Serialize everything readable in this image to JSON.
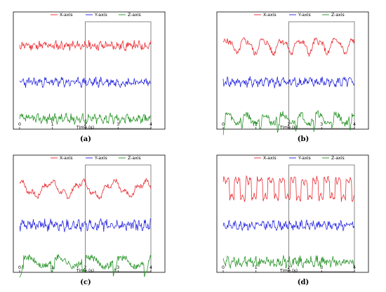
{
  "chart_data": [
    {
      "type": "line",
      "caption": "(a)",
      "xlabel": "Time (s)",
      "xlim": [
        0,
        4
      ],
      "x_ticks": [
        "0",
        "1",
        "2",
        "3",
        "4"
      ],
      "highlight_window": [
        2,
        4
      ],
      "legend_position": "top",
      "series": [
        {
          "name": "X-axis",
          "color": "#e8242a",
          "offset": 2.0,
          "amplitude": 0.17,
          "pattern": "noise",
          "seed": 11
        },
        {
          "name": "Y-axis",
          "color": "#2020e0",
          "offset": 1.0,
          "amplitude": 0.17,
          "pattern": "noise",
          "seed": 23
        },
        {
          "name": "Z-axis",
          "color": "#1f8f1f",
          "offset": 0.0,
          "amplitude": 0.18,
          "pattern": "noise",
          "seed": 37
        }
      ]
    },
    {
      "type": "line",
      "caption": "(b)",
      "xlabel": "Time (s)",
      "xlim": [
        0,
        4
      ],
      "x_ticks": [
        "0",
        "1",
        "2",
        "3",
        "4"
      ],
      "highlight_window": [
        2,
        4
      ],
      "legend_position": "top",
      "series": [
        {
          "name": "X-axis",
          "color": "#e8242a",
          "offset": 2.0,
          "amplitude": 0.26,
          "pattern": "periodic",
          "period": 0.55,
          "seed": 5
        },
        {
          "name": "Y-axis",
          "color": "#2020e0",
          "offset": 1.0,
          "amplitude": 0.18,
          "pattern": "noise",
          "seed": 41
        },
        {
          "name": "Z-axis",
          "color": "#1f8f1f",
          "offset": 0.0,
          "amplitude": 0.26,
          "pattern": "spiky",
          "period": 0.55,
          "seed": 59
        }
      ]
    },
    {
      "type": "line",
      "caption": "(c)",
      "xlabel": "Time (s)",
      "xlim": [
        0,
        4
      ],
      "x_ticks": [
        "0",
        "1",
        "2",
        "3",
        "4"
      ],
      "highlight_window": [
        2,
        4
      ],
      "legend_position": "top",
      "series": [
        {
          "name": "X-axis",
          "color": "#e8242a",
          "offset": 2.0,
          "amplitude": 0.25,
          "pattern": "slow",
          "period": 0.95,
          "seed": 7
        },
        {
          "name": "Y-axis",
          "color": "#2020e0",
          "offset": 1.0,
          "amplitude": 0.2,
          "pattern": "noise",
          "seed": 61
        },
        {
          "name": "Z-axis",
          "color": "#1f8f1f",
          "offset": 0.0,
          "amplitude": 0.25,
          "pattern": "spiky",
          "period": 0.95,
          "seed": 71
        }
      ]
    },
    {
      "type": "line",
      "caption": "(d)",
      "xlabel": "Time (s)",
      "xlim": [
        0,
        4
      ],
      "x_ticks": [
        "0",
        "1",
        "2",
        "3",
        "4"
      ],
      "highlight_window": [
        2,
        4
      ],
      "legend_position": "top",
      "series": [
        {
          "name": "X-axis",
          "color": "#e8242a",
          "offset": 2.0,
          "amplitude": 0.3,
          "pattern": "square",
          "period": 0.34,
          "seed": 3
        },
        {
          "name": "Y-axis",
          "color": "#2020e0",
          "offset": 1.0,
          "amplitude": 0.16,
          "pattern": "noise",
          "seed": 83
        },
        {
          "name": "Z-axis",
          "color": "#1f8f1f",
          "offset": 0.0,
          "amplitude": 0.2,
          "pattern": "noise",
          "seed": 97
        }
      ]
    }
  ]
}
